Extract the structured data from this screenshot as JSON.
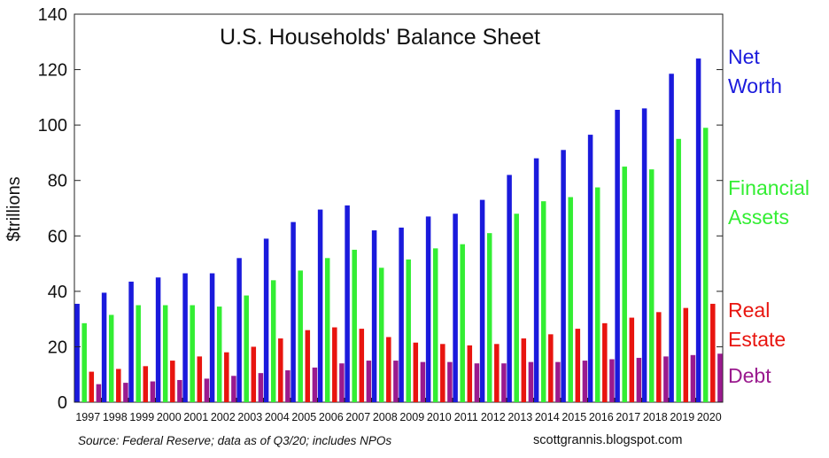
{
  "chart_data": {
    "type": "bar",
    "title": "U.S. Households' Balance Sheet",
    "ylabel": "$trillions",
    "xlabel": "",
    "ylim": [
      0,
      140
    ],
    "yticks": [
      0,
      20,
      40,
      60,
      80,
      100,
      120,
      140
    ],
    "grid": false,
    "legend_placement": "right",
    "categories": [
      "1997",
      "1998",
      "1999",
      "2000",
      "2001",
      "2002",
      "2003",
      "2004",
      "2005",
      "2006",
      "2007",
      "2008",
      "2009",
      "2010",
      "2011",
      "2012",
      "2013",
      "2014",
      "2015",
      "2016",
      "2017",
      "2018",
      "2019",
      "2020"
    ],
    "series": [
      {
        "name": "Net Worth",
        "legend_lines": [
          "Net",
          "Worth"
        ],
        "color": "#1a1adc",
        "values": [
          35.5,
          39.5,
          43.5,
          45,
          46.5,
          46.5,
          52,
          59,
          65,
          69.5,
          71,
          62,
          63,
          67,
          68,
          73,
          82,
          88,
          91,
          96.5,
          105.5,
          106,
          118.5,
          124
        ]
      },
      {
        "name": "Financial Assets",
        "legend_lines": [
          "Financial",
          "Assets"
        ],
        "color": "#33ee33",
        "values": [
          28.5,
          31.5,
          35,
          35,
          35,
          34.5,
          38.5,
          44,
          47.5,
          52,
          55,
          48.5,
          51.5,
          55.5,
          57,
          61,
          68,
          72.5,
          74,
          77.5,
          85,
          84,
          95,
          99
        ]
      },
      {
        "name": "Real Estate",
        "legend_lines": [
          "Real",
          "Estate"
        ],
        "color": "#e8150f",
        "values": [
          11,
          12,
          13,
          15,
          16.5,
          18,
          20,
          23,
          26,
          27,
          26.5,
          23.5,
          21.5,
          21,
          20.5,
          21,
          23,
          24.5,
          26.5,
          28.5,
          30.5,
          32.5,
          34,
          35.5
        ]
      },
      {
        "name": "Debt",
        "legend_lines": [
          "Debt"
        ],
        "color": "#9a1a8e",
        "values": [
          6.5,
          7,
          7.5,
          8,
          8.5,
          9.5,
          10.5,
          11.5,
          12.5,
          14,
          15,
          15,
          14.5,
          14.5,
          14,
          14,
          14.5,
          14.5,
          15,
          15.5,
          16,
          16.5,
          17,
          17.5
        ]
      }
    ],
    "source": "Source: Federal Reserve; data as of Q3/20; includes NPOs",
    "credit": "scottgrannis.blogspot.com"
  }
}
